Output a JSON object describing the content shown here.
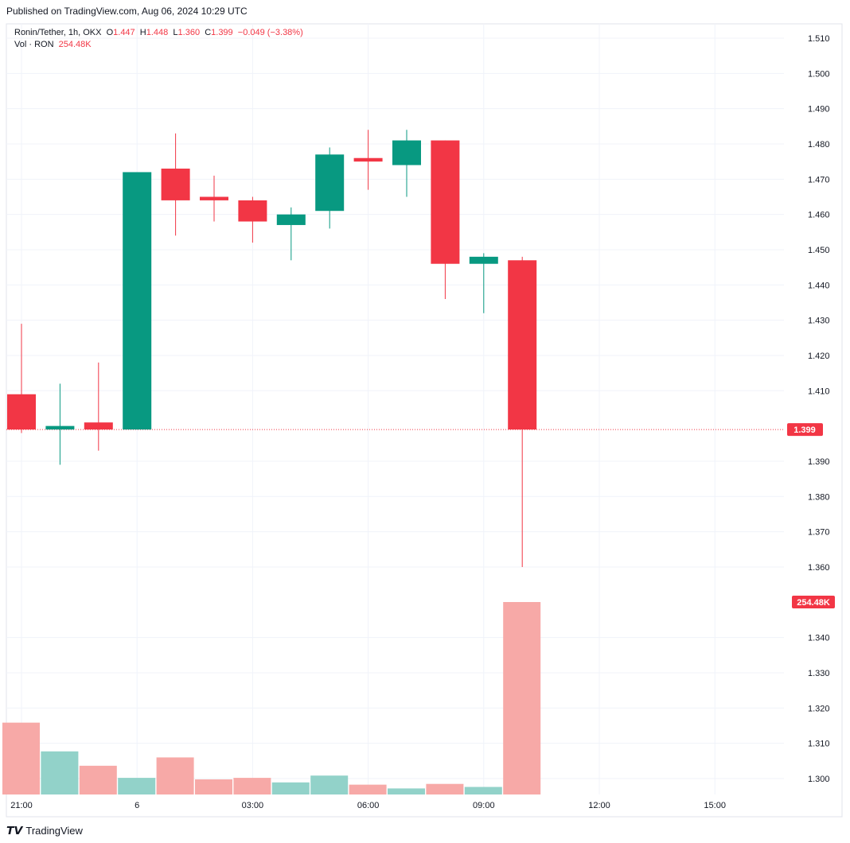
{
  "published": "Published on TradingView.com, Aug 06, 2024 10:29 UTC",
  "legend": {
    "symbol": "Ronin/Tether, 1h, OKX",
    "o_label": "O",
    "o": "1.447",
    "h_label": "H",
    "h": "1.448",
    "l_label": "L",
    "l": "1.360",
    "c_label": "C",
    "c": "1.399",
    "change": "−0.049 (−3.38%)",
    "vol_label": "Vol · RON",
    "vol": "254.48K"
  },
  "brand": "TradingView",
  "colors": {
    "up": "#089981",
    "down": "#f23645",
    "vol_up": "#92d2c9",
    "vol_down": "#f7a9a7",
    "grid": "#f0f3fa"
  },
  "chart_data": {
    "type": "candlestick",
    "ylim": [
      1.295,
      1.515
    ],
    "yticks": [
      "1.510",
      "1.500",
      "1.490",
      "1.480",
      "1.470",
      "1.460",
      "1.450",
      "1.440",
      "1.430",
      "1.420",
      "1.410",
      "1.390",
      "1.380",
      "1.370",
      "1.360",
      "1.340",
      "1.330",
      "1.320",
      "1.310",
      "1.300"
    ],
    "xticks": [
      {
        "label": "21:00",
        "i": 0
      },
      {
        "label": "6",
        "i": 3
      },
      {
        "label": "03:00",
        "i": 6
      },
      {
        "label": "06:00",
        "i": 9
      },
      {
        "label": "09:00",
        "i": 12
      },
      {
        "label": "12:00",
        "i": 15
      },
      {
        "label": "15:00",
        "i": 18
      }
    ],
    "last_price": "1.399",
    "last_volume": "254.48K",
    "candles": [
      {
        "t": "21:00",
        "o": 1.409,
        "h": 1.429,
        "l": 1.398,
        "c": 1.399,
        "v": 95
      },
      {
        "t": "22:00",
        "o": 1.399,
        "h": 1.412,
        "l": 1.389,
        "c": 1.4,
        "v": 57
      },
      {
        "t": "23:00",
        "o": 1.401,
        "h": 1.418,
        "l": 1.393,
        "c": 1.399,
        "v": 38
      },
      {
        "t": "00:00",
        "o": 1.399,
        "h": 1.472,
        "l": 1.399,
        "c": 1.472,
        "v": 22
      },
      {
        "t": "01:00",
        "o": 1.473,
        "h": 1.483,
        "l": 1.454,
        "c": 1.464,
        "v": 49
      },
      {
        "t": "02:00",
        "o": 1.465,
        "h": 1.471,
        "l": 1.458,
        "c": 1.464,
        "v": 20
      },
      {
        "t": "03:00",
        "o": 1.464,
        "h": 1.465,
        "l": 1.452,
        "c": 1.458,
        "v": 22
      },
      {
        "t": "04:00",
        "o": 1.457,
        "h": 1.462,
        "l": 1.447,
        "c": 1.46,
        "v": 16
      },
      {
        "t": "05:00",
        "o": 1.461,
        "h": 1.479,
        "l": 1.456,
        "c": 1.477,
        "v": 25
      },
      {
        "t": "06:00",
        "o": 1.476,
        "h": 1.484,
        "l": 1.467,
        "c": 1.475,
        "v": 13
      },
      {
        "t": "07:00",
        "o": 1.474,
        "h": 1.484,
        "l": 1.465,
        "c": 1.481,
        "v": 8
      },
      {
        "t": "08:00",
        "o": 1.481,
        "h": 1.481,
        "l": 1.436,
        "c": 1.446,
        "v": 14
      },
      {
        "t": "09:00",
        "o": 1.446,
        "h": 1.449,
        "l": 1.432,
        "c": 1.448,
        "v": 10
      },
      {
        "t": "10:00",
        "o": 1.447,
        "h": 1.448,
        "l": 1.36,
        "c": 1.399,
        "v": 254.48
      }
    ]
  }
}
